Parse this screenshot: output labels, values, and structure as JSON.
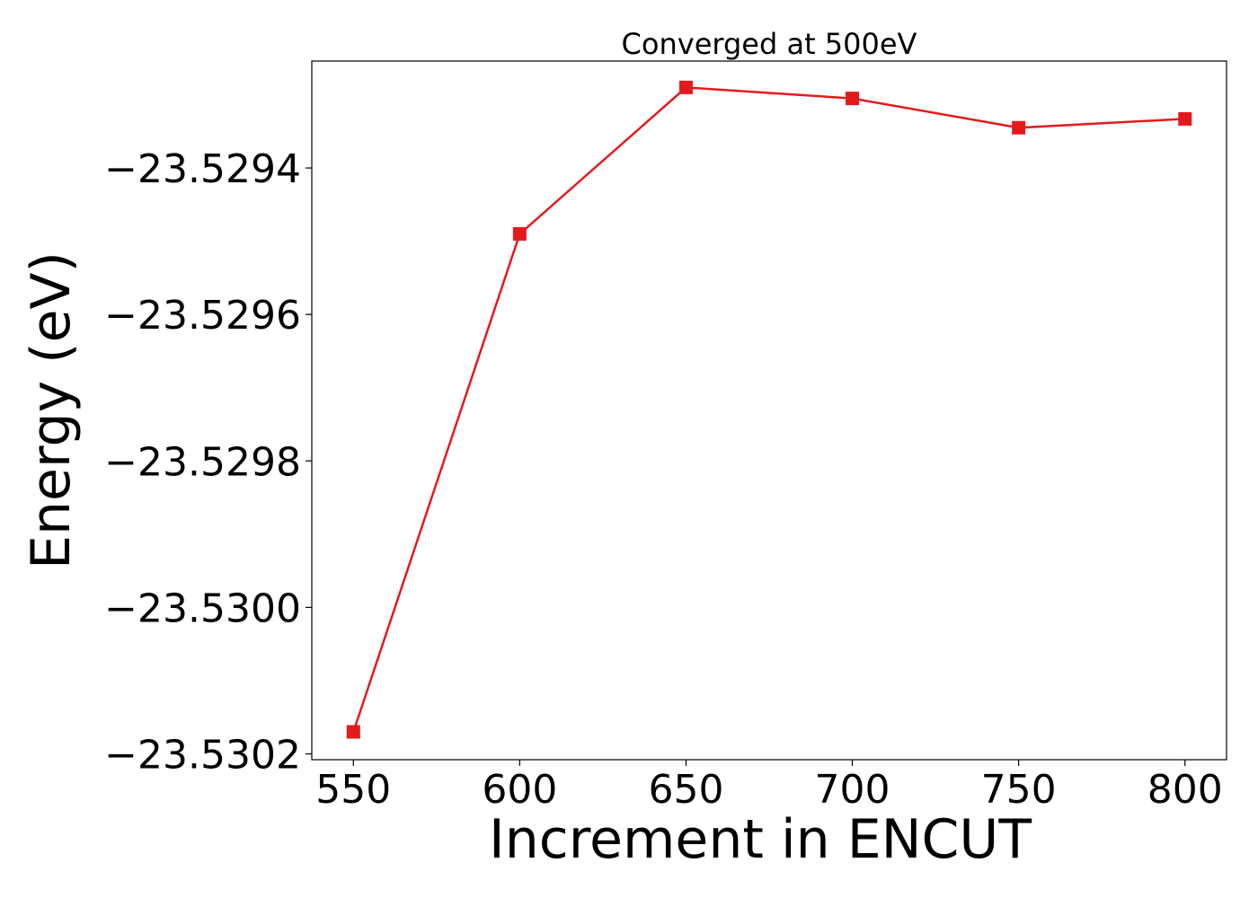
{
  "chart_data": {
    "type": "line",
    "title": "Converged at 500eV",
    "xlabel": "Increment in ENCUT",
    "ylabel": "Energy (eV)",
    "x": [
      550,
      600,
      650,
      700,
      750,
      800
    ],
    "series": [
      {
        "values": [
          -23.53017,
          -23.52949,
          -23.52929,
          -23.529305,
          -23.529345,
          -23.529333
        ],
        "color": "#e31a1c",
        "marker": "square"
      }
    ],
    "xticks": [
      550,
      600,
      650,
      700,
      750,
      800
    ],
    "xtick_labels": [
      "550",
      "600",
      "650",
      "700",
      "750",
      "800"
    ],
    "yticks": [
      -23.5294,
      -23.5296,
      -23.5298,
      -23.53,
      -23.5302
    ],
    "ytick_labels": [
      "−23.5294",
      "−23.5296",
      "−23.5298",
      "−23.5300",
      "−23.5302"
    ],
    "xlim": [
      537.5,
      812.5
    ],
    "ylim": [
      -23.530208,
      -23.529254
    ],
    "grid": false,
    "legend": "none"
  }
}
